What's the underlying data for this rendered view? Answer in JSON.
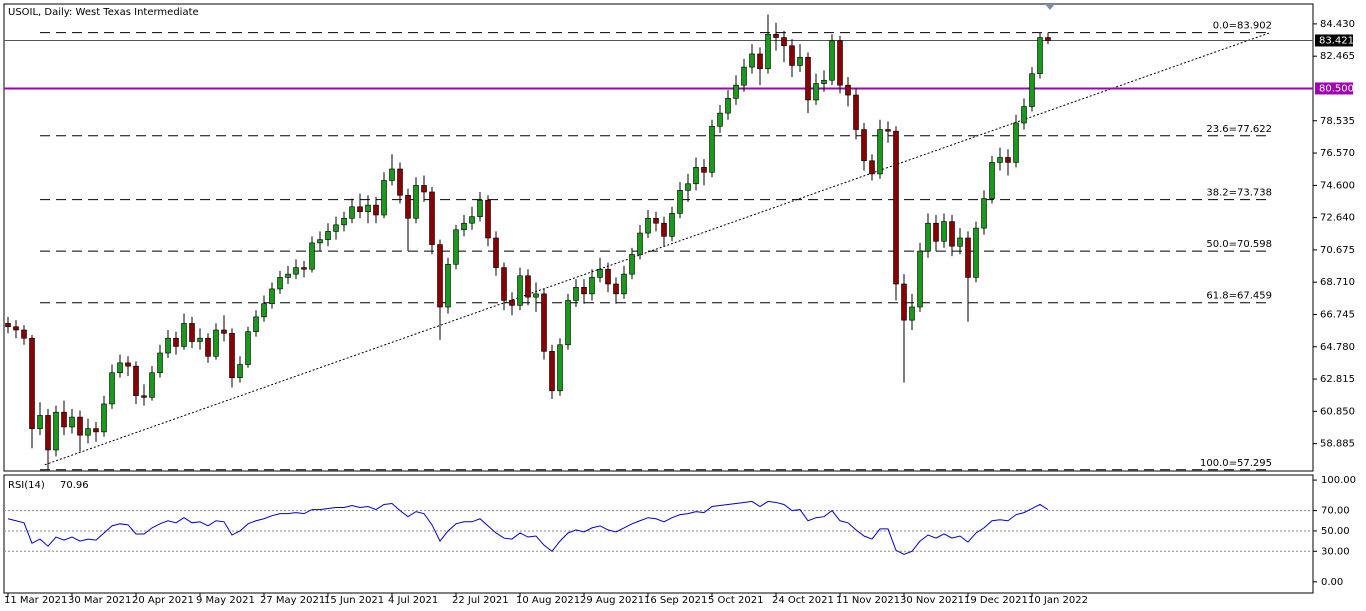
{
  "chart_data": {
    "type": "candlestick",
    "title": "USOIL, Daily:  West Texas Intermediate",
    "categories": [
      "11 Mar 2021",
      null,
      null,
      null,
      null,
      null,
      null,
      null,
      "30 Mar 2021",
      null,
      null,
      null,
      null,
      null,
      null,
      null,
      "20 Apr 2021",
      null,
      null,
      null,
      null,
      null,
      null,
      null,
      "9 May 2021",
      null,
      null,
      null,
      null,
      null,
      null,
      null,
      "27 May 2021",
      null,
      null,
      null,
      null,
      null,
      null,
      null,
      "15 Jun 2021",
      null,
      null,
      null,
      null,
      null,
      null,
      null,
      "4 Jul 2021",
      null,
      null,
      null,
      null,
      null,
      null,
      null,
      "22 Jul 2021",
      null,
      null,
      null,
      null,
      null,
      null,
      null,
      "10 Aug 2021",
      null,
      null,
      null,
      null,
      null,
      null,
      null,
      "29 Aug 2021",
      null,
      null,
      null,
      null,
      null,
      null,
      null,
      "16 Sep 2021",
      null,
      null,
      null,
      null,
      null,
      null,
      null,
      "5 Oct 2021",
      null,
      null,
      null,
      null,
      null,
      null,
      null,
      "24 Oct 2021",
      null,
      null,
      null,
      null,
      null,
      null,
      null,
      "11 Nov 2021",
      null,
      null,
      null,
      null,
      null,
      null,
      null,
      "30 Nov 2021",
      null,
      null,
      null,
      null,
      null,
      null,
      null,
      "19 Dec 2021",
      null,
      null,
      null,
      null,
      null,
      null,
      null,
      "10 Jan 2022",
      null,
      null
    ],
    "open": [
      66.2,
      66.0,
      65.8,
      65.3,
      59.8,
      60.6,
      58.5,
      60.8,
      59.9,
      60.5,
      59.4,
      59.8,
      59.6,
      61.3,
      63.2,
      63.8,
      63.6,
      61.8,
      61.7,
      63.2,
      64.4,
      65.3,
      64.8,
      66.2,
      65.1,
      65.3,
      64.2,
      65.8,
      65.6,
      62.9,
      63.7,
      65.7,
      66.6,
      67.4,
      68.3,
      69.0,
      69.2,
      69.6,
      69.5,
      71.1,
      71.3,
      71.8,
      72.2,
      72.6,
      73.3,
      73.0,
      73.4,
      72.8,
      74.9,
      75.6,
      74.0,
      72.6,
      74.6,
      74.2,
      71.0,
      67.2,
      69.8,
      71.9,
      72.3,
      72.7,
      73.7,
      71.4,
      69.6,
      67.6,
      67.3,
      69.1,
      67.8,
      68.0,
      64.5,
      62.1,
      64.9,
      67.6,
      68.4,
      68.0,
      69.0,
      69.5,
      68.6,
      68.0,
      69.2,
      70.4,
      71.7,
      72.6,
      72.3,
      71.5,
      72.9,
      74.3,
      74.7,
      75.7,
      75.4,
      78.2,
      79.0,
      79.9,
      80.7,
      81.8,
      82.6,
      81.7,
      83.8,
      83.6,
      83.1,
      81.9,
      82.4,
      79.8,
      80.8,
      81.0,
      83.4,
      80.7,
      80.1,
      78.0,
      76.1,
      75.3,
      78.0,
      77.9,
      68.6,
      66.4,
      67.2,
      70.6,
      72.3,
      71.2,
      72.4,
      70.9,
      71.4,
      69.0,
      72.0,
      73.8,
      76.0,
      76.3,
      76.0,
      78.4,
      79.4,
      81.4,
      83.6
    ],
    "high": [
      66.6,
      66.4,
      66.1,
      65.5,
      61.4,
      61.0,
      61.2,
      61.5,
      61.0,
      60.9,
      60.4,
      60.2,
      61.8,
      63.7,
      64.3,
      64.2,
      63.9,
      62.5,
      63.6,
      64.9,
      65.8,
      65.7,
      66.8,
      66.6,
      65.9,
      65.6,
      66.2,
      66.7,
      65.9,
      64.2,
      66.0,
      67.0,
      67.9,
      68.7,
      69.4,
      69.7,
      70.1,
      70.0,
      71.5,
      71.8,
      72.3,
      72.7,
      73.0,
      73.8,
      74.1,
      74.0,
      73.9,
      75.4,
      76.5,
      76.0,
      74.4,
      75.1,
      75.2,
      74.5,
      71.3,
      70.2,
      72.2,
      72.8,
      73.3,
      74.2,
      74.0,
      71.8,
      69.9,
      68.1,
      69.6,
      69.5,
      68.7,
      68.3,
      64.9,
      65.3,
      68.0,
      68.9,
      68.9,
      69.5,
      70.2,
      69.9,
      69.0,
      69.7,
      70.8,
      72.2,
      73.1,
      73.0,
      72.7,
      73.3,
      74.8,
      75.3,
      76.3,
      76.2,
      78.6,
      79.5,
      80.4,
      81.3,
      82.3,
      83.2,
      83.0,
      85.0,
      84.5,
      84.0,
      83.5,
      83.2,
      82.7,
      81.4,
      81.6,
      83.8,
      83.7,
      81.2,
      80.5,
      78.4,
      76.5,
      78.6,
      78.5,
      78.2,
      69.2,
      68.0,
      71.1,
      72.9,
      72.8,
      72.9,
      72.8,
      72.0,
      71.8,
      72.4,
      74.3,
      76.4,
      76.9,
      76.8,
      78.9,
      79.9,
      81.8,
      83.9,
      83.9
    ],
    "low": [
      65.6,
      65.3,
      64.9,
      58.6,
      59.4,
      57.3,
      58.1,
      59.4,
      59.5,
      58.4,
      58.9,
      59.0,
      59.3,
      61.0,
      62.9,
      63.0,
      61.3,
      61.2,
      61.5,
      62.9,
      64.1,
      64.3,
      64.6,
      64.7,
      64.6,
      63.8,
      64.0,
      65.1,
      62.3,
      62.6,
      63.5,
      65.4,
      66.3,
      67.1,
      68.0,
      68.6,
      68.9,
      69.0,
      69.3,
      70.6,
      70.9,
      71.3,
      71.8,
      72.3,
      72.6,
      72.3,
      72.3,
      72.6,
      74.6,
      73.5,
      70.6,
      72.3,
      73.6,
      70.4,
      65.2,
      66.8,
      69.5,
      71.5,
      71.9,
      72.4,
      70.9,
      69.1,
      67.0,
      66.7,
      67.0,
      67.3,
      66.9,
      64.0,
      61.6,
      61.8,
      64.6,
      67.2,
      67.4,
      67.6,
      68.7,
      68.1,
      67.4,
      67.7,
      68.9,
      70.1,
      71.4,
      71.8,
      70.9,
      71.2,
      72.6,
      73.6,
      74.3,
      74.6,
      75.1,
      77.8,
      78.6,
      79.5,
      80.3,
      81.4,
      80.7,
      81.4,
      82.8,
      82.1,
      81.2,
      81.5,
      79.0,
      79.5,
      80.3,
      80.7,
      80.2,
      79.4,
      77.4,
      75.5,
      74.9,
      75.0,
      77.2,
      67.6,
      62.6,
      65.8,
      66.9,
      70.2,
      70.6,
      70.8,
      70.3,
      70.4,
      66.3,
      68.7,
      71.6,
      73.5,
      75.5,
      75.2,
      75.7,
      78.0,
      79.1,
      81.1,
      83.2
    ],
    "close": [
      66.0,
      65.8,
      65.3,
      59.8,
      60.6,
      58.5,
      60.8,
      59.9,
      60.5,
      59.4,
      59.8,
      59.6,
      61.3,
      63.2,
      63.8,
      63.6,
      61.8,
      61.7,
      63.2,
      64.4,
      65.3,
      64.8,
      66.2,
      65.1,
      65.3,
      64.2,
      65.8,
      65.6,
      62.9,
      63.7,
      65.7,
      66.6,
      67.4,
      68.3,
      69.0,
      69.2,
      69.6,
      69.5,
      71.1,
      71.3,
      71.8,
      72.2,
      72.6,
      73.3,
      73.0,
      73.4,
      72.8,
      74.9,
      75.6,
      74.0,
      72.6,
      74.6,
      74.2,
      71.0,
      67.2,
      69.8,
      71.9,
      72.3,
      72.7,
      73.7,
      71.4,
      69.6,
      67.6,
      67.3,
      69.1,
      67.8,
      68.0,
      64.5,
      62.1,
      64.9,
      67.6,
      68.4,
      68.0,
      69.0,
      69.5,
      68.6,
      68.0,
      69.2,
      70.4,
      71.7,
      72.6,
      72.3,
      71.5,
      72.9,
      74.3,
      74.7,
      75.7,
      75.4,
      78.2,
      79.0,
      79.9,
      80.7,
      81.8,
      82.6,
      81.7,
      83.8,
      83.6,
      83.1,
      81.9,
      82.4,
      79.8,
      80.8,
      81.0,
      83.4,
      80.7,
      80.1,
      78.0,
      76.1,
      75.3,
      78.0,
      77.9,
      68.6,
      66.4,
      67.2,
      70.6,
      72.3,
      71.2,
      72.4,
      70.9,
      71.4,
      69.0,
      72.0,
      73.8,
      76.0,
      76.3,
      76.0,
      78.4,
      79.4,
      81.4,
      83.6,
      83.42
    ],
    "up_color": "#1a9a1a",
    "down_color": "#8b0000",
    "ylim": [
      57.28,
      85.58
    ],
    "yticks": [
      {
        "value": 84.43,
        "label": "84.430"
      },
      {
        "value": 82.465,
        "label": "82.465"
      },
      {
        "value": 78.535,
        "label": "78.535"
      },
      {
        "value": 76.57,
        "label": "76.570"
      },
      {
        "value": 74.6,
        "label": "74.600"
      },
      {
        "value": 72.64,
        "label": "72.640"
      },
      {
        "value": 70.675,
        "label": "70.675"
      },
      {
        "value": 68.71,
        "label": "68.710"
      },
      {
        "value": 66.745,
        "label": "66.745"
      },
      {
        "value": 64.78,
        "label": "64.780"
      },
      {
        "value": 62.815,
        "label": "62.815"
      },
      {
        "value": 60.85,
        "label": "60.850"
      },
      {
        "value": 58.885,
        "label": "58.885"
      }
    ],
    "fib": [
      {
        "label": "0.0=83.902",
        "value": 83.902
      },
      {
        "label": "23.6=77.622",
        "value": 77.622
      },
      {
        "label": "38.2=73.738",
        "value": 73.738
      },
      {
        "label": "50.0=70.598",
        "value": 70.598
      },
      {
        "label": "61.8=67.459",
        "value": 67.459
      },
      {
        "label": "100.0=57.295",
        "value": 57.295
      }
    ],
    "hline": {
      "value": 80.5,
      "label": "80.500",
      "color": "#a000b4"
    },
    "last_price": {
      "value": 83.421,
      "label": "83.421"
    },
    "trendline": {
      "x": [
        4.6,
        157.8
      ],
      "y": [
        57.6,
        83.9
      ]
    },
    "rsi": {
      "name": "RSI(14)",
      "color": "#0000cd",
      "values": [
        62,
        60,
        58,
        38,
        42,
        35,
        44,
        41,
        44,
        40,
        42,
        41,
        48,
        55,
        57,
        56,
        47,
        47,
        53,
        57,
        60,
        58,
        63,
        58,
        59,
        55,
        60,
        59,
        46,
        50,
        57,
        60,
        62,
        65,
        67,
        67,
        68,
        67,
        71,
        71,
        72,
        73,
        73,
        75,
        73,
        74,
        71,
        76,
        77,
        70,
        64,
        69,
        67,
        56,
        40,
        50,
        57,
        59,
        59,
        62,
        55,
        48,
        43,
        42,
        48,
        44,
        45,
        36,
        30,
        40,
        48,
        51,
        49,
        53,
        55,
        51,
        49,
        53,
        57,
        60,
        63,
        62,
        59,
        63,
        66,
        67,
        69,
        68,
        74,
        75,
        76,
        77,
        78,
        79,
        74,
        79,
        78,
        76,
        70,
        71,
        60,
        63,
        64,
        70,
        60,
        58,
        51,
        45,
        42,
        52,
        52,
        31,
        27,
        30,
        40,
        46,
        43,
        47,
        43,
        45,
        39,
        48,
        53,
        60,
        61,
        60,
        66,
        68,
        72,
        76,
        70.96
      ],
      "ylim": [
        -11,
        104
      ],
      "yticks": [
        {
          "value": 100,
          "label": "100.00"
        },
        {
          "value": 70,
          "label": "70.00"
        },
        {
          "value": 50,
          "label": "50.00"
        },
        {
          "value": 30,
          "label": "30.00"
        },
        {
          "value": 0,
          "label": "0.00"
        }
      ],
      "levels": [
        70,
        50,
        30
      ]
    }
  }
}
